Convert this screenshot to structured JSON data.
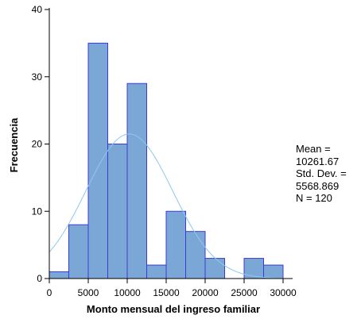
{
  "chart_data": {
    "type": "bar",
    "subtype": "histogram",
    "xlabel": "Monto mensual del ingreso familiar",
    "ylabel": "Frecuencia",
    "xlim": [
      0,
      30000
    ],
    "ylim": [
      0,
      40
    ],
    "bin_width": 2500,
    "x_ticks": [
      "0",
      "5000",
      "10000",
      "15000",
      "20000",
      "25000",
      "30000"
    ],
    "y_ticks": [
      "0",
      "10",
      "20",
      "30",
      "40"
    ],
    "bins": [
      {
        "start": 0,
        "end": 2500,
        "count": 1
      },
      {
        "start": 2500,
        "end": 5000,
        "count": 8
      },
      {
        "start": 5000,
        "end": 7500,
        "count": 35
      },
      {
        "start": 7500,
        "end": 10000,
        "count": 20
      },
      {
        "start": 10000,
        "end": 12500,
        "count": 29
      },
      {
        "start": 12500,
        "end": 15000,
        "count": 2
      },
      {
        "start": 15000,
        "end": 17500,
        "count": 10
      },
      {
        "start": 17500,
        "end": 20000,
        "count": 7
      },
      {
        "start": 20000,
        "end": 22500,
        "count": 3
      },
      {
        "start": 22500,
        "end": 25000,
        "count": 0
      },
      {
        "start": 25000,
        "end": 27500,
        "count": 3
      },
      {
        "start": 27500,
        "end": 30000,
        "count": 2
      }
    ],
    "normal_curve": {
      "mean": 10261.67,
      "std_dev": 5568.869,
      "n": 120
    },
    "colors": {
      "bar_fill": "#7ba7d7",
      "bar_edge": "#3b3bd4",
      "curve": "#8cc8f0"
    },
    "grid": false
  },
  "stats": {
    "mean_label": "Mean =",
    "mean_value": "10261.67",
    "std_label": "Std. Dev. =",
    "std_value": "5568.869",
    "n_label": "N = 120"
  }
}
